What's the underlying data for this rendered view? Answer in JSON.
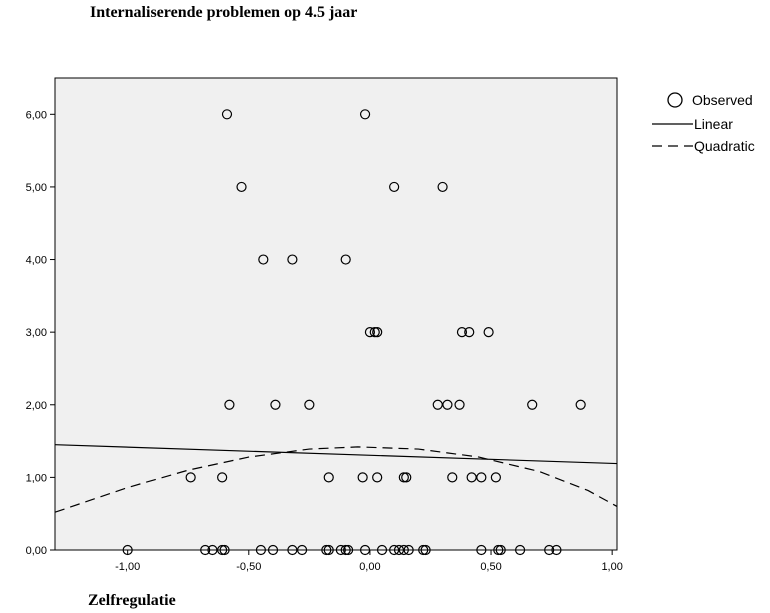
{
  "chart_data": {
    "type": "scatter",
    "title": "Internaliserende problemen op 4.5 jaar",
    "xlabel": "Zelfregulatie",
    "ylabel": "",
    "xlim": [
      -1.3,
      1.02
    ],
    "ylim": [
      0,
      6.5
    ],
    "x_ticks": [
      "-1,00",
      "-0,50",
      "0,00",
      "0,50",
      "1,00"
    ],
    "x_tick_values": [
      -1.0,
      -0.5,
      0.0,
      0.5,
      1.0
    ],
    "y_ticks": [
      "0,00",
      "1,00",
      "2,00",
      "3,00",
      "4,00",
      "5,00",
      "6,00"
    ],
    "y_tick_values": [
      0,
      1,
      2,
      3,
      4,
      5,
      6
    ],
    "legend": [
      "Observed",
      "Linear",
      "Quadratic"
    ],
    "legend_position": "right",
    "plot_background": "#f0f0f0",
    "grid": false,
    "series": [
      {
        "name": "Observed",
        "marker": "open-circle",
        "points": [
          [
            -0.59,
            6
          ],
          [
            -0.02,
            6
          ],
          [
            -0.53,
            5
          ],
          [
            0.1,
            5
          ],
          [
            0.3,
            5
          ],
          [
            -0.44,
            4
          ],
          [
            -0.32,
            4
          ],
          [
            -0.1,
            4
          ],
          [
            0.0,
            3
          ],
          [
            0.02,
            3
          ],
          [
            0.03,
            3
          ],
          [
            0.38,
            3
          ],
          [
            0.41,
            3
          ],
          [
            0.49,
            3
          ],
          [
            -0.58,
            2
          ],
          [
            -0.39,
            2
          ],
          [
            -0.25,
            2
          ],
          [
            0.28,
            2
          ],
          [
            0.32,
            2
          ],
          [
            0.37,
            2
          ],
          [
            0.67,
            2
          ],
          [
            0.87,
            2
          ],
          [
            -0.74,
            1
          ],
          [
            -0.61,
            1
          ],
          [
            -0.17,
            1
          ],
          [
            -0.03,
            1
          ],
          [
            0.03,
            1
          ],
          [
            0.14,
            1
          ],
          [
            0.15,
            1
          ],
          [
            0.34,
            1
          ],
          [
            0.42,
            1
          ],
          [
            0.46,
            1
          ],
          [
            0.52,
            1
          ],
          [
            -1.0,
            0
          ],
          [
            -0.68,
            0
          ],
          [
            -0.65,
            0
          ],
          [
            -0.61,
            0
          ],
          [
            -0.6,
            0
          ],
          [
            -0.45,
            0
          ],
          [
            -0.4,
            0
          ],
          [
            -0.32,
            0
          ],
          [
            -0.28,
            0
          ],
          [
            -0.18,
            0
          ],
          [
            -0.17,
            0
          ],
          [
            -0.12,
            0
          ],
          [
            -0.1,
            0
          ],
          [
            -0.09,
            0
          ],
          [
            -0.02,
            0
          ],
          [
            0.05,
            0
          ],
          [
            0.1,
            0
          ],
          [
            0.12,
            0
          ],
          [
            0.14,
            0
          ],
          [
            0.16,
            0
          ],
          [
            0.22,
            0
          ],
          [
            0.23,
            0
          ],
          [
            0.46,
            0
          ],
          [
            0.53,
            0
          ],
          [
            0.54,
            0
          ],
          [
            0.62,
            0
          ],
          [
            0.74,
            0
          ],
          [
            0.77,
            0
          ]
        ]
      },
      {
        "name": "Linear",
        "style": "solid",
        "x": [
          -1.3,
          1.02
        ],
        "y": [
          1.45,
          1.19
        ]
      },
      {
        "name": "Quadratic",
        "style": "dashed",
        "x": [
          -1.3,
          -1.0,
          -0.75,
          -0.5,
          -0.25,
          -0.05,
          0.2,
          0.45,
          0.7,
          0.9,
          1.02
        ],
        "y": [
          0.52,
          0.86,
          1.1,
          1.28,
          1.39,
          1.42,
          1.39,
          1.28,
          1.08,
          0.82,
          0.6
        ]
      }
    ]
  }
}
